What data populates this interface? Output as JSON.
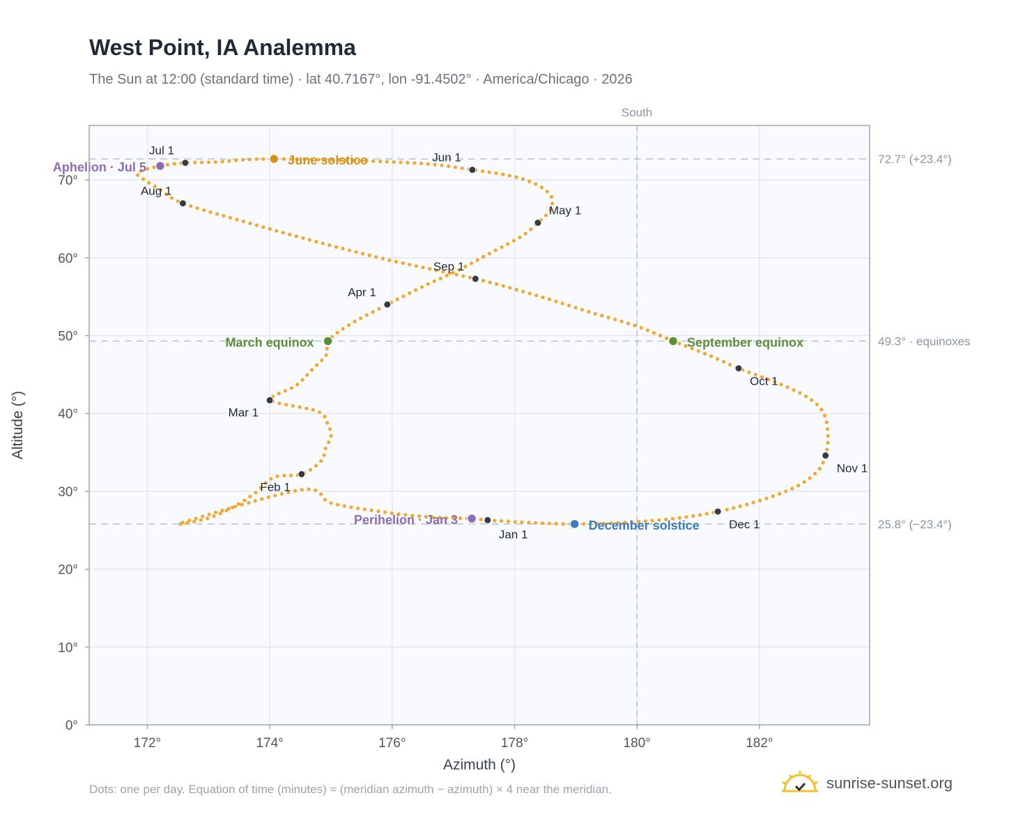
{
  "header": {
    "title": "West Point, IA Analemma",
    "subtitle": "The Sun at 12:00 (standard time) · lat 40.7167°, lon -91.4502° · America/Chicago · 2026"
  },
  "footer": {
    "note": "Dots: one per day. Equation of time (minutes) ≈ (meridian azimuth − azimuth) × 4 near the meridian.",
    "brand": "sunrise-sunset.org"
  },
  "colors": {
    "curve": "#f2a72e",
    "month_marker": "#343a46",
    "equinox": "#5b8f3a",
    "june_solstice": "#d6901c",
    "december_solstice": "#3c7ac0",
    "apsis": "#8e6bb8",
    "plot_bg": "#f8fafd",
    "grid": "#e3e8ee",
    "reference_line": "#b7c2cd",
    "icon_sun": "#f2c12e"
  },
  "chart_data": {
    "type": "scatter",
    "xlabel": "Azimuth (°)",
    "ylabel": "Altitude (°)",
    "xlim": [
      171.05,
      183.8
    ],
    "ylim": [
      0,
      77
    ],
    "x_ticks": [
      172,
      174,
      176,
      178,
      180,
      182
    ],
    "x_tick_labels": [
      "172°",
      "174°",
      "176°",
      "178°",
      "180°",
      "182°"
    ],
    "y_ticks": [
      0,
      10,
      20,
      30,
      40,
      50,
      60,
      70
    ],
    "y_tick_labels": [
      "0°",
      "10°",
      "20°",
      "30°",
      "40°",
      "50°",
      "60°",
      "70°"
    ],
    "grid": true,
    "meridian": {
      "x": 180,
      "label": "South"
    },
    "reference_lines": [
      {
        "y": 72.7,
        "label": "72.7° (+23.4°)"
      },
      {
        "y": 49.3,
        "label": "49.3° · equinoxes"
      },
      {
        "y": 25.8,
        "label": "25.8° (−23.4°)"
      }
    ],
    "points_per_day": true,
    "daily_path": [
      [
        172.58,
        26.0
      ],
      [
        172.97,
        26.5
      ],
      [
        173.36,
        27.8
      ],
      [
        173.73,
        29.6
      ],
      [
        174.07,
        31.8
      ],
      [
        174.52,
        32.2
      ],
      [
        174.84,
        33.9
      ],
      [
        174.91,
        35.5
      ],
      [
        175.0,
        37.1
      ],
      [
        174.95,
        38.6
      ],
      [
        174.78,
        40.3
      ],
      [
        174.02,
        41.7
      ],
      [
        174.43,
        43.6
      ],
      [
        174.7,
        45.7
      ],
      [
        174.93,
        47.6
      ],
      [
        174.95,
        49.3
      ],
      [
        175.3,
        51.4
      ],
      [
        175.92,
        54.0
      ],
      [
        176.5,
        56.3
      ],
      [
        177.1,
        58.5
      ],
      [
        177.6,
        60.6
      ],
      [
        178.1,
        62.7
      ],
      [
        178.38,
        64.5
      ],
      [
        178.6,
        66.4
      ],
      [
        178.55,
        68.4
      ],
      [
        178.1,
        70.2
      ],
      [
        177.31,
        71.3
      ],
      [
        176.3,
        72.2
      ],
      [
        174.07,
        72.7
      ],
      [
        173.1,
        72.3
      ],
      [
        172.62,
        72.2
      ],
      [
        172.21,
        71.8
      ],
      [
        171.85,
        71.0
      ],
      [
        171.9,
        70.3
      ],
      [
        172.2,
        68.8
      ],
      [
        172.58,
        67.0
      ],
      [
        173.6,
        64.6
      ],
      [
        174.7,
        62.2
      ],
      [
        175.9,
        59.8
      ],
      [
        177.36,
        57.3
      ],
      [
        178.3,
        55.3
      ],
      [
        179.2,
        53.1
      ],
      [
        180.0,
        51.2
      ],
      [
        180.59,
        49.3
      ],
      [
        181.2,
        47.4
      ],
      [
        181.66,
        45.8
      ],
      [
        182.3,
        43.9
      ],
      [
        182.8,
        42.0
      ],
      [
        183.05,
        40.0
      ],
      [
        183.12,
        37.2
      ],
      [
        183.08,
        34.6
      ],
      [
        182.95,
        32.6
      ],
      [
        182.6,
        30.6
      ],
      [
        182.0,
        28.8
      ],
      [
        181.32,
        27.4
      ],
      [
        180.6,
        26.5
      ],
      [
        179.8,
        26.0
      ],
      [
        178.98,
        25.8
      ],
      [
        178.2,
        26.0
      ],
      [
        177.56,
        26.3
      ],
      [
        177.3,
        26.5
      ],
      [
        176.6,
        26.7
      ],
      [
        175.8,
        27.4
      ],
      [
        175.0,
        28.5
      ],
      [
        174.52,
        30.2
      ]
    ],
    "monthly_markers": [
      {
        "label": "Jan 1",
        "x": 177.56,
        "y": 26.3
      },
      {
        "label": "Feb 1",
        "x": 174.52,
        "y": 32.2
      },
      {
        "label": "Mar 1",
        "x": 174.0,
        "y": 41.7
      },
      {
        "label": "Apr 1",
        "x": 175.92,
        "y": 54.0
      },
      {
        "label": "May 1",
        "x": 178.38,
        "y": 64.5
      },
      {
        "label": "Jun 1",
        "x": 177.31,
        "y": 71.3
      },
      {
        "label": "Jul 1",
        "x": 172.62,
        "y": 72.2
      },
      {
        "label": "Aug 1",
        "x": 172.58,
        "y": 67.0
      },
      {
        "label": "Sep 1",
        "x": 177.36,
        "y": 57.3
      },
      {
        "label": "Oct 1",
        "x": 181.66,
        "y": 45.8
      },
      {
        "label": "Nov 1",
        "x": 183.08,
        "y": 34.6
      },
      {
        "label": "Dec 1",
        "x": 181.32,
        "y": 27.4
      }
    ],
    "events": [
      {
        "label": "March equinox",
        "x": 174.95,
        "y": 49.3,
        "kind": "equinox"
      },
      {
        "label": "September equinox",
        "x": 180.59,
        "y": 49.3,
        "kind": "equinox"
      },
      {
        "label": "June solstice",
        "x": 174.07,
        "y": 72.7,
        "kind": "june_solstice"
      },
      {
        "label": "December solstice",
        "x": 178.98,
        "y": 25.8,
        "kind": "december_solstice"
      },
      {
        "label": "Aphelion · Jul 5",
        "x": 172.21,
        "y": 71.8,
        "kind": "apsis"
      },
      {
        "label": "Perihelion · Jan 3",
        "x": 177.3,
        "y": 26.5,
        "kind": "apsis"
      }
    ]
  }
}
